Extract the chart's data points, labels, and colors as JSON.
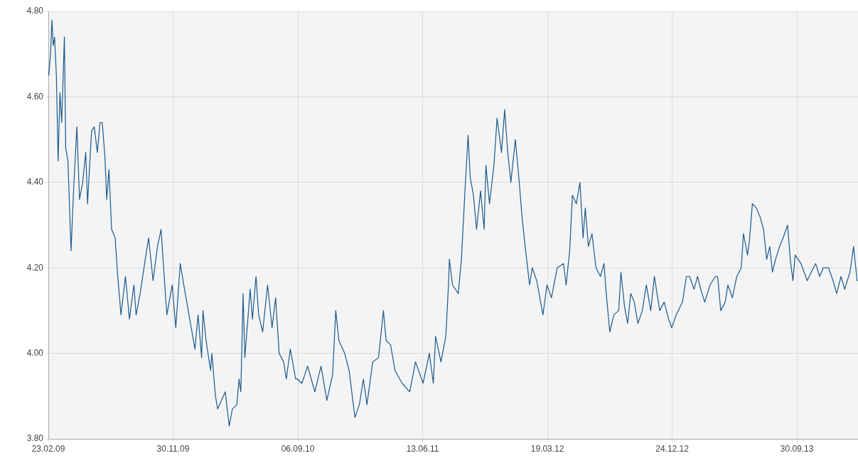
{
  "chart_data": {
    "type": "line",
    "x": [
      "2009-02-23",
      "2009-02-24",
      "2009-02-28",
      "2009-03-03",
      "2009-03-06",
      "2009-03-09",
      "2009-03-13",
      "2009-03-17",
      "2009-03-21",
      "2009-03-25",
      "2009-03-31",
      "2009-04-03",
      "2009-04-08",
      "2009-04-15",
      "2009-04-21",
      "2009-04-28",
      "2009-05-04",
      "2009-05-11",
      "2009-05-18",
      "2009-05-22",
      "2009-05-31",
      "2009-06-06",
      "2009-06-13",
      "2009-06-19",
      "2009-06-24",
      "2009-06-30",
      "2009-07-04",
      "2009-07-09",
      "2009-07-15",
      "2009-07-23",
      "2009-07-28",
      "2009-08-05",
      "2009-08-15",
      "2009-08-24",
      "2009-09-03",
      "2009-09-08",
      "2009-09-17",
      "2009-09-30",
      "2009-10-06",
      "2009-10-16",
      "2009-10-26",
      "2009-11-03",
      "2009-11-10",
      "2009-11-16",
      "2009-11-28",
      "2009-12-06",
      "2009-12-16",
      "2009-12-24",
      "2010-01-03",
      "2010-01-18",
      "2010-01-25",
      "2010-02-02",
      "2010-02-05",
      "2010-02-12",
      "2010-02-22",
      "2010-02-25",
      "2010-03-05",
      "2010-03-10",
      "2010-03-27",
      "2010-04-05",
      "2010-04-12",
      "2010-04-22",
      "2010-04-27",
      "2010-05-01",
      "2010-05-06",
      "2010-05-10",
      "2010-05-22",
      "2010-05-27",
      "2010-06-04",
      "2010-06-10",
      "2010-06-19",
      "2010-06-30",
      "2010-07-10",
      "2010-07-18",
      "2010-07-26",
      "2010-08-05",
      "2010-08-11",
      "2010-08-20",
      "2010-09-01",
      "2010-09-05",
      "2010-09-15",
      "2010-09-28",
      "2010-10-14",
      "2010-10-28",
      "2010-11-10",
      "2010-11-23",
      "2010-11-30",
      "2010-12-07",
      "2010-12-20",
      "2010-12-30",
      "2011-01-12",
      "2011-01-22",
      "2011-01-31",
      "2011-02-08",
      "2011-02-21",
      "2011-03-06",
      "2011-03-17",
      "2011-03-23",
      "2011-04-02",
      "2011-04-12",
      "2011-04-28",
      "2011-05-15",
      "2011-05-28",
      "2011-06-14",
      "2011-06-28",
      "2011-07-07",
      "2011-07-12",
      "2011-07-24",
      "2011-08-04",
      "2011-08-10",
      "2011-08-12",
      "2011-08-19",
      "2011-09-01",
      "2011-09-08",
      "2011-09-16",
      "2011-09-23",
      "2011-09-28",
      "2011-10-05",
      "2011-10-12",
      "2011-10-21",
      "2011-10-29",
      "2011-11-02",
      "2011-11-10",
      "2011-11-20",
      "2011-11-27",
      "2011-12-07",
      "2011-12-14",
      "2011-12-21",
      "2011-12-28",
      "2012-01-07",
      "2012-01-15",
      "2012-01-22",
      "2012-01-29",
      "2012-02-08",
      "2012-02-14",
      "2012-02-24",
      "2012-03-09",
      "2012-03-18",
      "2012-03-28",
      "2012-04-10",
      "2012-04-24",
      "2012-04-30",
      "2012-05-08",
      "2012-05-14",
      "2012-05-23",
      "2012-05-31",
      "2012-06-07",
      "2012-06-12",
      "2012-06-19",
      "2012-06-27",
      "2012-07-06",
      "2012-07-16",
      "2012-07-24",
      "2012-07-29",
      "2012-08-06",
      "2012-08-15",
      "2012-08-26",
      "2012-08-31",
      "2012-09-08",
      "2012-09-15",
      "2012-09-22",
      "2012-09-30",
      "2012-10-08",
      "2012-10-18",
      "2012-10-27",
      "2012-11-06",
      "2012-11-14",
      "2012-11-26",
      "2012-12-06",
      "2012-12-16",
      "2012-12-23",
      "2013-01-02",
      "2013-01-16",
      "2013-01-25",
      "2013-02-01",
      "2013-02-11",
      "2013-02-19",
      "2013-02-26",
      "2013-03-07",
      "2013-03-19",
      "2013-03-31",
      "2013-04-05",
      "2013-04-12",
      "2013-04-22",
      "2013-04-28",
      "2013-05-08",
      "2013-05-18",
      "2013-05-28",
      "2013-06-02",
      "2013-06-11",
      "2013-06-15",
      "2013-06-22",
      "2013-07-01",
      "2013-07-09",
      "2013-07-17",
      "2013-07-24",
      "2013-07-31",
      "2013-08-06",
      "2013-08-13",
      "2013-08-22",
      "2013-08-30",
      "2013-09-09",
      "2013-09-15",
      "2013-09-21",
      "2013-09-26",
      "2013-10-09",
      "2013-10-23",
      "2013-11-01",
      "2013-11-11",
      "2013-11-20",
      "2013-11-28",
      "2013-12-10",
      "2013-12-20",
      "2013-12-28",
      "2014-01-07",
      "2014-01-15",
      "2014-01-27",
      "2014-02-04",
      "2014-02-12",
      "2014-02-14"
    ],
    "values": [
      4.66,
      4.65,
      4.7,
      4.78,
      4.72,
      4.74,
      4.65,
      4.45,
      4.61,
      4.54,
      4.74,
      4.48,
      4.45,
      4.24,
      4.39,
      4.53,
      4.36,
      4.4,
      4.47,
      4.35,
      4.52,
      4.53,
      4.47,
      4.54,
      4.54,
      4.46,
      4.36,
      4.43,
      4.29,
      4.27,
      4.19,
      4.09,
      4.18,
      4.08,
      4.16,
      4.09,
      4.14,
      4.23,
      4.27,
      4.17,
      4.25,
      4.29,
      4.18,
      4.09,
      4.16,
      4.06,
      4.21,
      4.16,
      4.1,
      4.01,
      4.09,
      3.99,
      4.1,
      4.03,
      3.96,
      4.0,
      3.9,
      3.87,
      3.91,
      3.83,
      3.87,
      3.88,
      3.94,
      3.91,
      4.14,
      3.99,
      4.15,
      4.08,
      4.18,
      4.09,
      4.05,
      4.16,
      4.06,
      4.13,
      4.0,
      3.98,
      3.94,
      4.01,
      3.94,
      3.94,
      3.93,
      3.97,
      3.91,
      3.97,
      3.89,
      3.95,
      4.1,
      4.03,
      4.0,
      3.96,
      3.85,
      3.88,
      3.94,
      3.88,
      3.98,
      3.99,
      4.1,
      4.03,
      4.02,
      3.96,
      3.93,
      3.91,
      3.98,
      3.93,
      4.0,
      3.93,
      4.04,
      3.98,
      4.04,
      4.16,
      4.22,
      4.16,
      4.14,
      4.22,
      4.38,
      4.51,
      4.41,
      4.37,
      4.29,
      4.38,
      4.29,
      4.44,
      4.35,
      4.44,
      4.55,
      4.47,
      4.57,
      4.47,
      4.4,
      4.5,
      4.41,
      4.32,
      4.25,
      4.16,
      4.2,
      4.17,
      4.09,
      4.16,
      4.13,
      4.2,
      4.21,
      4.16,
      4.24,
      4.37,
      4.35,
      4.4,
      4.27,
      4.34,
      4.25,
      4.28,
      4.2,
      4.18,
      4.21,
      4.14,
      4.05,
      4.09,
      4.1,
      4.19,
      4.11,
      4.07,
      4.14,
      4.12,
      4.07,
      4.1,
      4.16,
      4.1,
      4.18,
      4.1,
      4.12,
      4.08,
      4.06,
      4.09,
      4.12,
      4.18,
      4.18,
      4.15,
      4.18,
      4.15,
      4.12,
      4.16,
      4.18,
      4.18,
      4.1,
      4.12,
      4.16,
      4.13,
      4.18,
      4.2,
      4.28,
      4.23,
      4.26,
      4.35,
      4.34,
      4.32,
      4.29,
      4.22,
      4.25,
      4.19,
      4.22,
      4.25,
      4.27,
      4.3,
      4.22,
      4.17,
      4.23,
      4.21,
      4.17,
      4.19,
      4.21,
      4.18,
      4.2,
      4.2,
      4.17,
      4.14,
      4.18,
      4.15,
      4.19,
      4.25,
      4.17,
      4.17
    ],
    "color": "#1b5a8e",
    "marker": "none",
    "line_style": "solid",
    "grid": true,
    "legend": false,
    "xlim": [
      "2009-02-23",
      "2014-02-14"
    ],
    "xticks": [
      {
        "value": "2009-02-23",
        "label": "23.02.09"
      },
      {
        "value": "2009-11-30",
        "label": "30.11.09"
      },
      {
        "value": "2010-09-06",
        "label": "06.09.10"
      },
      {
        "value": "2011-06-13",
        "label": "13.06.11"
      },
      {
        "value": "2012-03-19",
        "label": "19.03.12"
      },
      {
        "value": "2012-12-24",
        "label": "24.12.12"
      },
      {
        "value": "2013-09-30",
        "label": "30.09.13"
      }
    ],
    "ylim": [
      3.8,
      4.8
    ],
    "yticks": [
      {
        "value": 3.8,
        "label": "3.80"
      },
      {
        "value": 4.0,
        "label": "4.00"
      },
      {
        "value": 4.2,
        "label": "4.20"
      },
      {
        "value": 4.4,
        "label": "4.40"
      },
      {
        "value": 4.6,
        "label": "4.60"
      },
      {
        "value": 4.8,
        "label": "4.80"
      }
    ]
  }
}
